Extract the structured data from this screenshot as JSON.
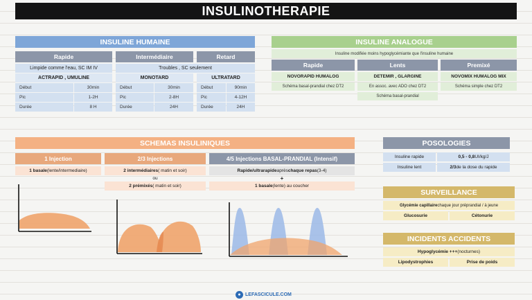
{
  "title": "INSULINOTHERAPIE",
  "humaine": {
    "header": "INSULINE HUMAINE",
    "cols": [
      {
        "label": "Rapide",
        "note": "Limpide comme l'eau, SC IM IV",
        "names": "ACTRAPID , UMULINE",
        "rows": [
          {
            "k": "Début",
            "v": "30min"
          },
          {
            "k": "Pic",
            "v": "1-2H"
          },
          {
            "k": "Durée",
            "v": "8 H"
          }
        ]
      },
      {
        "label": "Intermédiaire",
        "names": "MONOTARD",
        "rows": [
          {
            "k": "Début",
            "v": "30min"
          },
          {
            "k": "Pic",
            "v": "2-8H"
          },
          {
            "k": "Durée",
            "v": "24H"
          }
        ]
      },
      {
        "label": "Retard",
        "names": "ULTRATARD",
        "rows": [
          {
            "k": "Début",
            "v": "90min"
          },
          {
            "k": "Pic",
            "v": "4-12H"
          },
          {
            "k": "Durée",
            "v": "24H"
          }
        ]
      }
    ],
    "shared_note": "Troubles , SC seulement"
  },
  "analogue": {
    "header": "INSULINE ANALOGUE",
    "note": "Insuline modifiée moins hypoglycémiante que l'insuline humaine",
    "cols": [
      {
        "label": "Rapide",
        "names": "NOVORAPID HUMALOG",
        "notes": [
          "Schéma basal-prandial chez DT2"
        ]
      },
      {
        "label": "Lents",
        "names": "DETEMIR , GLARGINE",
        "notes": [
          "En assoc. avec ADO chez DT2",
          "Schéma basal-prandial"
        ]
      },
      {
        "label": "Premixé",
        "names": "NOVOMIX HUMALOG MIX",
        "notes": [
          "Schéma simple chez DT2"
        ]
      }
    ]
  },
  "schemas": {
    "header": "SCHEMAS INSULINIQUES",
    "col1": {
      "label": "1 Injection",
      "b": "1 basale",
      "rest": " (lente/intermediaire)"
    },
    "col2": {
      "label": "2/3 Injections",
      "l1b": "2 intermédiaires",
      "l1r": " ( matin et soir)",
      "ou": "ou",
      "l2b": "2 prémixés",
      "l2r": " ( matin et soir)"
    },
    "col3": {
      "label": "4/5 Injections BASAL-PRANDIAL (Intensif)",
      "l1b": "Rapide/ultrarapide",
      "l1m": " après ",
      "l1b2": "chaque repas",
      "l1r": " (3-4)",
      "plus": "+",
      "l2b": "1 basale",
      "l2r": " (lente) au coucher"
    }
  },
  "posologies": {
    "header": "POSOLOGIES",
    "rows": [
      {
        "k": "Insuline rapide",
        "vb": "0,5 - 0,8",
        "vr": " UI/kg/J"
      },
      {
        "k": "Insuline lent",
        "vb": "2/3",
        "vr": " de la dose du rapide"
      }
    ]
  },
  "surveillance": {
    "header": "SURVEILLANCE",
    "r1b": "Glycémie capillaire",
    "r1r": " chaque jour préprandial / à jeune",
    "r2a": "Glucosurie",
    "r2b": "Cétonurie"
  },
  "incidents": {
    "header": "INCIDENTS ACCIDENTS",
    "r1b": "Hypoglycémie +++",
    "r1r": " (nocturnes)",
    "r2a": "Lipodystrophies",
    "r2b": "Prise de poids"
  },
  "footer": {
    "logo": "LEFASCICULE.COM"
  },
  "colors": {
    "blue": "#7ea6d8",
    "green": "#a8d08d",
    "orange": "#f4b183",
    "yellow": "#d4b86a",
    "grey": "#8c96a8"
  }
}
